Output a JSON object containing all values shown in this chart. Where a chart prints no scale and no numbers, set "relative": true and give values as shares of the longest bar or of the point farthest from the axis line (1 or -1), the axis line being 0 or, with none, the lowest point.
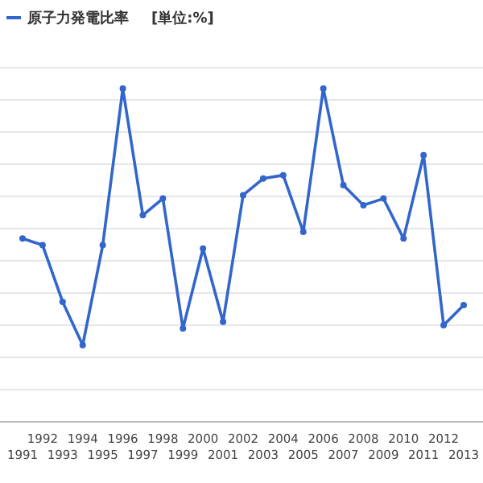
{
  "chart_data": {
    "type": "line",
    "subtitle": "[単位:%]",
    "relative": true,
    "grid": "y",
    "legend": "top left",
    "marker": "circle",
    "categories": [
      "1991",
      "1992",
      "1993",
      "1994",
      "1995",
      "1996",
      "1997",
      "1998",
      "1999",
      "2000",
      "2001",
      "2002",
      "2003",
      "2004",
      "2005",
      "2006",
      "2007",
      "2008",
      "2009",
      "2010",
      "2011",
      "2012",
      "2013"
    ],
    "series": [
      {
        "name": "原子力発電比率",
        "color": "#3366cc",
        "values": [
          0.55,
          0.53,
          0.36,
          0.23,
          0.53,
          1,
          0.62,
          0.67,
          0.28,
          0.52,
          0.3,
          0.68,
          0.73,
          0.74,
          0.57,
          1,
          0.71,
          0.65,
          0.67,
          0.55,
          0.8,
          0.29,
          0.35
        ]
      }
    ]
  }
}
